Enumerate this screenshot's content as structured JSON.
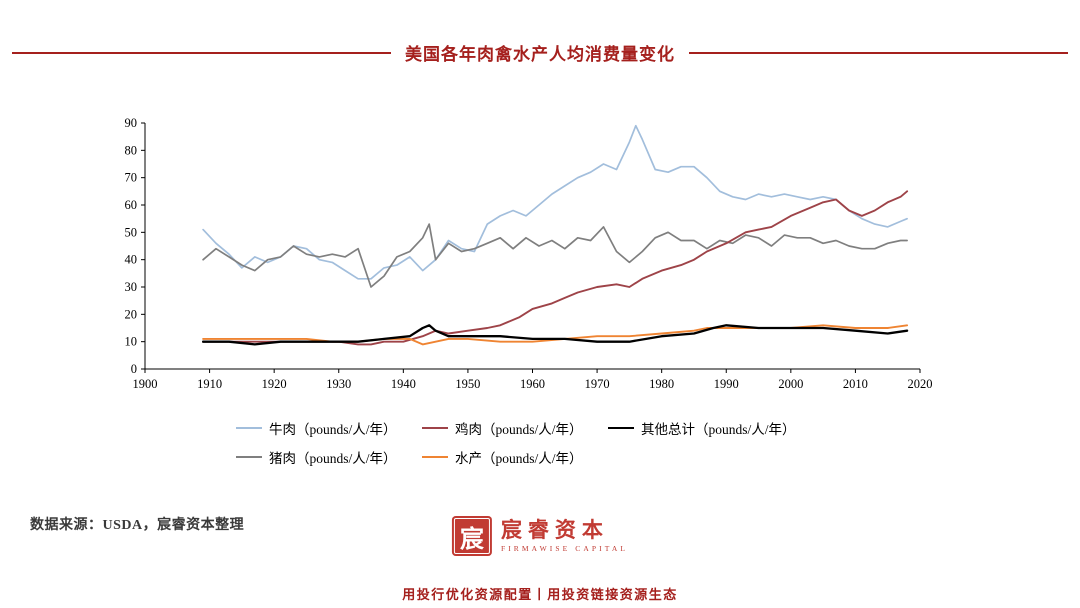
{
  "header": {
    "title": "美国各年肉禽水产人均消费量变化"
  },
  "colors": {
    "brand_red": "#a5201d",
    "logo_red": "#c13b33",
    "axis": "#000000"
  },
  "chart_data": {
    "type": "line",
    "title": "美国各年肉禽水产人均消费量变化",
    "xlabel": "",
    "ylabel": "",
    "x_axis": {
      "min": 1900,
      "max": 2020,
      "ticks": [
        1900,
        1910,
        1920,
        1930,
        1940,
        1950,
        1960,
        1970,
        1980,
        1990,
        2000,
        2010,
        2020
      ]
    },
    "y_axis": {
      "min": 0,
      "max": 90,
      "ticks": [
        0,
        10,
        20,
        30,
        40,
        50,
        60,
        70,
        80,
        90
      ]
    },
    "grid": false,
    "legend_position": "bottom-left",
    "legend_layout": [
      [
        0,
        2,
        4
      ],
      [
        1,
        3
      ]
    ],
    "series": [
      {
        "id": "beef",
        "name": "牛肉（pounds/人/年）",
        "color": "#a2bedc",
        "width": 1.7,
        "x": [
          1909,
          1911,
          1913,
          1915,
          1917,
          1919,
          1921,
          1923,
          1925,
          1927,
          1929,
          1931,
          1933,
          1935,
          1937,
          1939,
          1941,
          1943,
          1945,
          1947,
          1949,
          1951,
          1953,
          1955,
          1957,
          1959,
          1961,
          1963,
          1965,
          1967,
          1969,
          1971,
          1973,
          1975,
          1976,
          1977,
          1979,
          1981,
          1983,
          1985,
          1987,
          1989,
          1991,
          1993,
          1995,
          1997,
          1999,
          2001,
          2003,
          2005,
          2007,
          2009,
          2011,
          2013,
          2015,
          2017,
          2018
        ],
        "y": [
          51,
          46,
          42,
          37,
          41,
          39,
          41,
          45,
          44,
          40,
          39,
          36,
          33,
          33,
          37,
          38,
          41,
          36,
          40,
          47,
          44,
          43,
          53,
          56,
          58,
          56,
          60,
          64,
          67,
          70,
          72,
          75,
          73,
          83,
          89,
          84,
          73,
          72,
          74,
          74,
          70,
          65,
          63,
          62,
          64,
          63,
          64,
          63,
          62,
          63,
          62,
          58,
          55,
          53,
          52,
          54,
          55
        ]
      },
      {
        "id": "pork",
        "name": "猪肉（pounds/人/年）",
        "color": "#7f7f7f",
        "width": 1.7,
        "x": [
          1909,
          1911,
          1913,
          1915,
          1917,
          1919,
          1921,
          1923,
          1925,
          1927,
          1929,
          1931,
          1933,
          1935,
          1937,
          1939,
          1941,
          1943,
          1944,
          1945,
          1947,
          1949,
          1951,
          1953,
          1955,
          1957,
          1959,
          1961,
          1963,
          1965,
          1967,
          1969,
          1971,
          1973,
          1975,
          1977,
          1979,
          1981,
          1983,
          1985,
          1987,
          1989,
          1991,
          1993,
          1995,
          1997,
          1999,
          2001,
          2003,
          2005,
          2007,
          2009,
          2011,
          2013,
          2015,
          2017,
          2018
        ],
        "y": [
          40,
          44,
          41,
          38,
          36,
          40,
          41,
          45,
          42,
          41,
          42,
          41,
          44,
          30,
          34,
          41,
          43,
          48,
          53,
          40,
          46,
          43,
          44,
          46,
          48,
          44,
          48,
          45,
          47,
          44,
          48,
          47,
          52,
          43,
          39,
          43,
          48,
          50,
          47,
          47,
          44,
          47,
          46,
          49,
          48,
          45,
          49,
          48,
          48,
          46,
          47,
          45,
          44,
          44,
          46,
          47,
          47
        ]
      },
      {
        "id": "chicken",
        "name": "鸡肉（pounds/人/年）",
        "color": "#9e4348",
        "width": 1.9,
        "x": [
          1909,
          1915,
          1920,
          1925,
          1930,
          1933,
          1935,
          1937,
          1940,
          1943,
          1945,
          1947,
          1950,
          1953,
          1955,
          1958,
          1960,
          1963,
          1965,
          1967,
          1970,
          1973,
          1975,
          1977,
          1980,
          1983,
          1985,
          1987,
          1990,
          1993,
          1995,
          1997,
          2000,
          2003,
          2005,
          2007,
          2009,
          2011,
          2013,
          2015,
          2017,
          2018
        ],
        "y": [
          10,
          10,
          10,
          10,
          10,
          9,
          9,
          10,
          10,
          12,
          14,
          13,
          14,
          15,
          16,
          19,
          22,
          24,
          26,
          28,
          30,
          31,
          30,
          33,
          36,
          38,
          40,
          43,
          46,
          50,
          51,
          52,
          56,
          59,
          61,
          62,
          58,
          56,
          58,
          61,
          63,
          65
        ]
      },
      {
        "id": "fish",
        "name": "水产（pounds/人/年）",
        "color": "#ef8432",
        "width": 1.9,
        "x": [
          1909,
          1913,
          1917,
          1921,
          1925,
          1929,
          1933,
          1937,
          1941,
          1943,
          1945,
          1947,
          1950,
          1955,
          1960,
          1965,
          1970,
          1975,
          1980,
          1985,
          1987,
          1990,
          1995,
          2000,
          2005,
          2010,
          2013,
          2015,
          2018
        ],
        "y": [
          11,
          11,
          11,
          11,
          11,
          10,
          10,
          11,
          11,
          9,
          10,
          11,
          11,
          10,
          10,
          11,
          12,
          12,
          13,
          14,
          15,
          15,
          15,
          15,
          16,
          15,
          15,
          15,
          16
        ]
      },
      {
        "id": "other",
        "name": "其他总计（pounds/人/年）",
        "color": "#000000",
        "width": 2.3,
        "x": [
          1909,
          1913,
          1917,
          1921,
          1925,
          1929,
          1933,
          1937,
          1941,
          1943,
          1944,
          1945,
          1947,
          1950,
          1955,
          1960,
          1965,
          1970,
          1975,
          1980,
          1985,
          1988,
          1990,
          1995,
          2000,
          2005,
          2010,
          2015,
          2018
        ],
        "y": [
          10,
          10,
          9,
          10,
          10,
          10,
          10,
          11,
          12,
          15,
          16,
          14,
          12,
          12,
          12,
          11,
          11,
          10,
          10,
          12,
          13,
          15,
          16,
          15,
          15,
          15,
          14,
          13,
          14
        ]
      }
    ]
  },
  "footer": {
    "source": "数据来源：USDA，宸睿资本整理",
    "seal_char": "宸",
    "logo_cn": "宸睿资本",
    "logo_en": "FIRMAWISE CAPITAL",
    "slogan": "用投行优化资源配置丨用投资链接资源生态"
  }
}
